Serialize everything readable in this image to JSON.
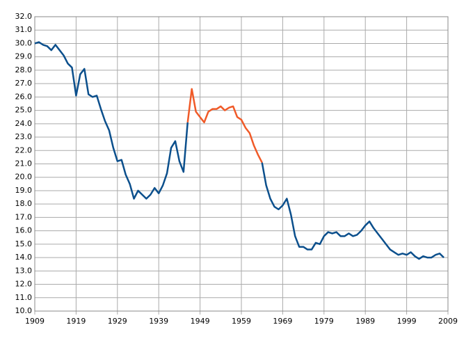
{
  "chart_data": {
    "type": "line",
    "x": [
      1909,
      1910,
      1911,
      1912,
      1913,
      1914,
      1915,
      1916,
      1917,
      1918,
      1919,
      1920,
      1921,
      1922,
      1923,
      1924,
      1925,
      1926,
      1927,
      1928,
      1929,
      1930,
      1931,
      1932,
      1933,
      1934,
      1935,
      1936,
      1937,
      1938,
      1939,
      1940,
      1941,
      1942,
      1943,
      1944,
      1945,
      1946,
      1947,
      1948,
      1949,
      1950,
      1951,
      1952,
      1953,
      1954,
      1955,
      1956,
      1957,
      1958,
      1959,
      1960,
      1961,
      1962,
      1963,
      1964,
      1965,
      1966,
      1967,
      1968,
      1969,
      1970,
      1971,
      1972,
      1973,
      1974,
      1975,
      1976,
      1977,
      1978,
      1979,
      1980,
      1981,
      1982,
      1983,
      1984,
      1985,
      1986,
      1987,
      1988,
      1989,
      1990,
      1991,
      1992,
      1993,
      1994,
      1995,
      1996,
      1997,
      1998,
      1999,
      2000,
      2001,
      2002,
      2003,
      2004,
      2005,
      2006,
      2007,
      2008
    ],
    "series": [
      {
        "color": "#0b4f8c",
        "values": [
          30.0,
          30.1,
          29.9,
          29.8,
          29.5,
          29.9,
          29.5,
          29.1,
          28.5,
          28.2,
          26.1,
          27.7,
          28.1,
          26.2,
          26.0,
          26.1,
          25.1,
          24.2,
          23.5,
          22.2,
          21.2,
          21.3,
          20.2,
          19.5,
          18.4,
          19.0,
          18.7,
          18.4,
          18.7,
          19.2,
          18.8,
          19.4,
          20.3,
          22.2,
          22.7,
          21.2,
          20.4,
          24.1,
          null,
          null,
          null,
          null,
          null,
          null,
          null,
          null,
          null,
          null,
          null,
          null,
          null,
          null,
          null,
          null,
          null,
          21.1,
          19.4,
          18.4,
          17.8,
          17.6,
          17.9,
          18.4,
          17.2,
          15.6,
          14.8,
          14.8,
          14.6,
          14.6,
          15.1,
          15.0,
          15.6,
          15.9,
          15.8,
          15.9,
          15.6,
          15.6,
          15.8,
          15.6,
          15.7,
          16.0,
          16.4,
          16.7,
          16.2,
          15.8,
          15.4,
          15.0,
          14.6,
          14.4,
          14.2,
          14.3,
          14.2,
          14.4,
          14.1,
          13.9,
          14.1,
          14.0,
          14.0,
          14.2,
          14.3,
          14.0
        ]
      },
      {
        "color": "#f05a28",
        "values": [
          null,
          null,
          null,
          null,
          null,
          null,
          null,
          null,
          null,
          null,
          null,
          null,
          null,
          null,
          null,
          null,
          null,
          null,
          null,
          null,
          null,
          null,
          null,
          null,
          null,
          null,
          null,
          null,
          null,
          null,
          null,
          null,
          null,
          null,
          null,
          null,
          null,
          24.1,
          26.6,
          24.9,
          24.5,
          24.1,
          24.9,
          25.1,
          25.1,
          25.3,
          25.0,
          25.2,
          25.3,
          24.5,
          24.3,
          23.7,
          23.3,
          22.4,
          21.7,
          21.1,
          null,
          null,
          null,
          null,
          null,
          null,
          null,
          null,
          null,
          null,
          null,
          null,
          null,
          null,
          null,
          null,
          null,
          null,
          null,
          null,
          null,
          null,
          null,
          null,
          null,
          null,
          null,
          null,
          null,
          null,
          null,
          null,
          null,
          null,
          null,
          null,
          null,
          null,
          null,
          null,
          null,
          null,
          null,
          null
        ]
      }
    ],
    "xlim": [
      1909,
      2009
    ],
    "xticks": [
      1909,
      1919,
      1929,
      1939,
      1949,
      1959,
      1969,
      1979,
      1989,
      1999,
      2009
    ],
    "ylim": [
      10,
      32
    ],
    "yticks": [
      {
        "value": 10,
        "label": "10.0"
      },
      {
        "value": 11,
        "label": "11.0"
      },
      {
        "value": 12,
        "label": "12.0"
      },
      {
        "value": 13,
        "label": "13.0"
      },
      {
        "value": 14,
        "label": "14.0"
      },
      {
        "value": 15,
        "label": "15.0"
      },
      {
        "value": 16,
        "label": "16.0"
      },
      {
        "value": 17,
        "label": "17.0"
      },
      {
        "value": 18,
        "label": "18.0"
      },
      {
        "value": 19,
        "label": "19.0"
      },
      {
        "value": 20,
        "label": "20.0"
      },
      {
        "value": 21,
        "label": "21.0"
      },
      {
        "value": 22,
        "label": "22.0"
      },
      {
        "value": 23,
        "label": "23.0"
      },
      {
        "value": 24,
        "label": "24.0"
      },
      {
        "value": 25,
        "label": "25.0"
      },
      {
        "value": 26,
        "label": "26.0"
      },
      {
        "value": 27,
        "label": "27.0"
      },
      {
        "value": 28,
        "label": "28.0"
      },
      {
        "value": 29,
        "label": "29.0"
      },
      {
        "value": 30,
        "label": "30.0"
      },
      {
        "value": 31,
        "label": "31.0"
      },
      {
        "value": 32,
        "label": "32.0"
      }
    ],
    "grid": true
  }
}
